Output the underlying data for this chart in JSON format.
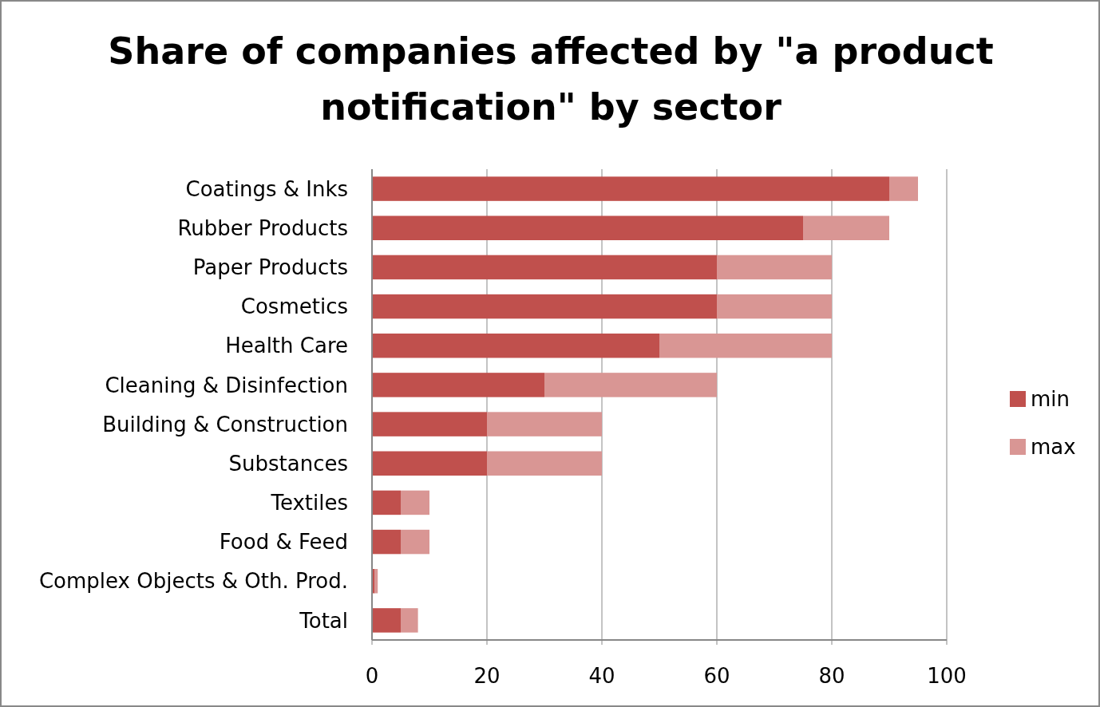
{
  "chart_data": {
    "type": "bar",
    "orientation": "horizontal",
    "stacked": true,
    "title": "Share of companies affected by \"a product notification\" by sector",
    "categories": [
      "Coatings & Inks",
      "Rubber Products",
      "Paper Products",
      "Cosmetics",
      "Health Care",
      "Cleaning & Disinfection",
      "Building & Construction",
      "Substances",
      "Textiles",
      "Food & Feed",
      "Complex Objects & Oth. Prod.",
      "Total"
    ],
    "series": [
      {
        "name": "min",
        "color": "#c0504d",
        "values": [
          90,
          75,
          60,
          60,
          50,
          30,
          20,
          20,
          5,
          5,
          0.5,
          5
        ]
      },
      {
        "name": "max",
        "color": "#d99694",
        "values": [
          5,
          15,
          20,
          20,
          30,
          30,
          20,
          20,
          5,
          5,
          0.5,
          3
        ]
      }
    ],
    "xlim": [
      0,
      100
    ],
    "xticks": [
      0,
      20,
      40,
      60,
      80,
      100
    ],
    "grid": "x",
    "legend": "right"
  }
}
